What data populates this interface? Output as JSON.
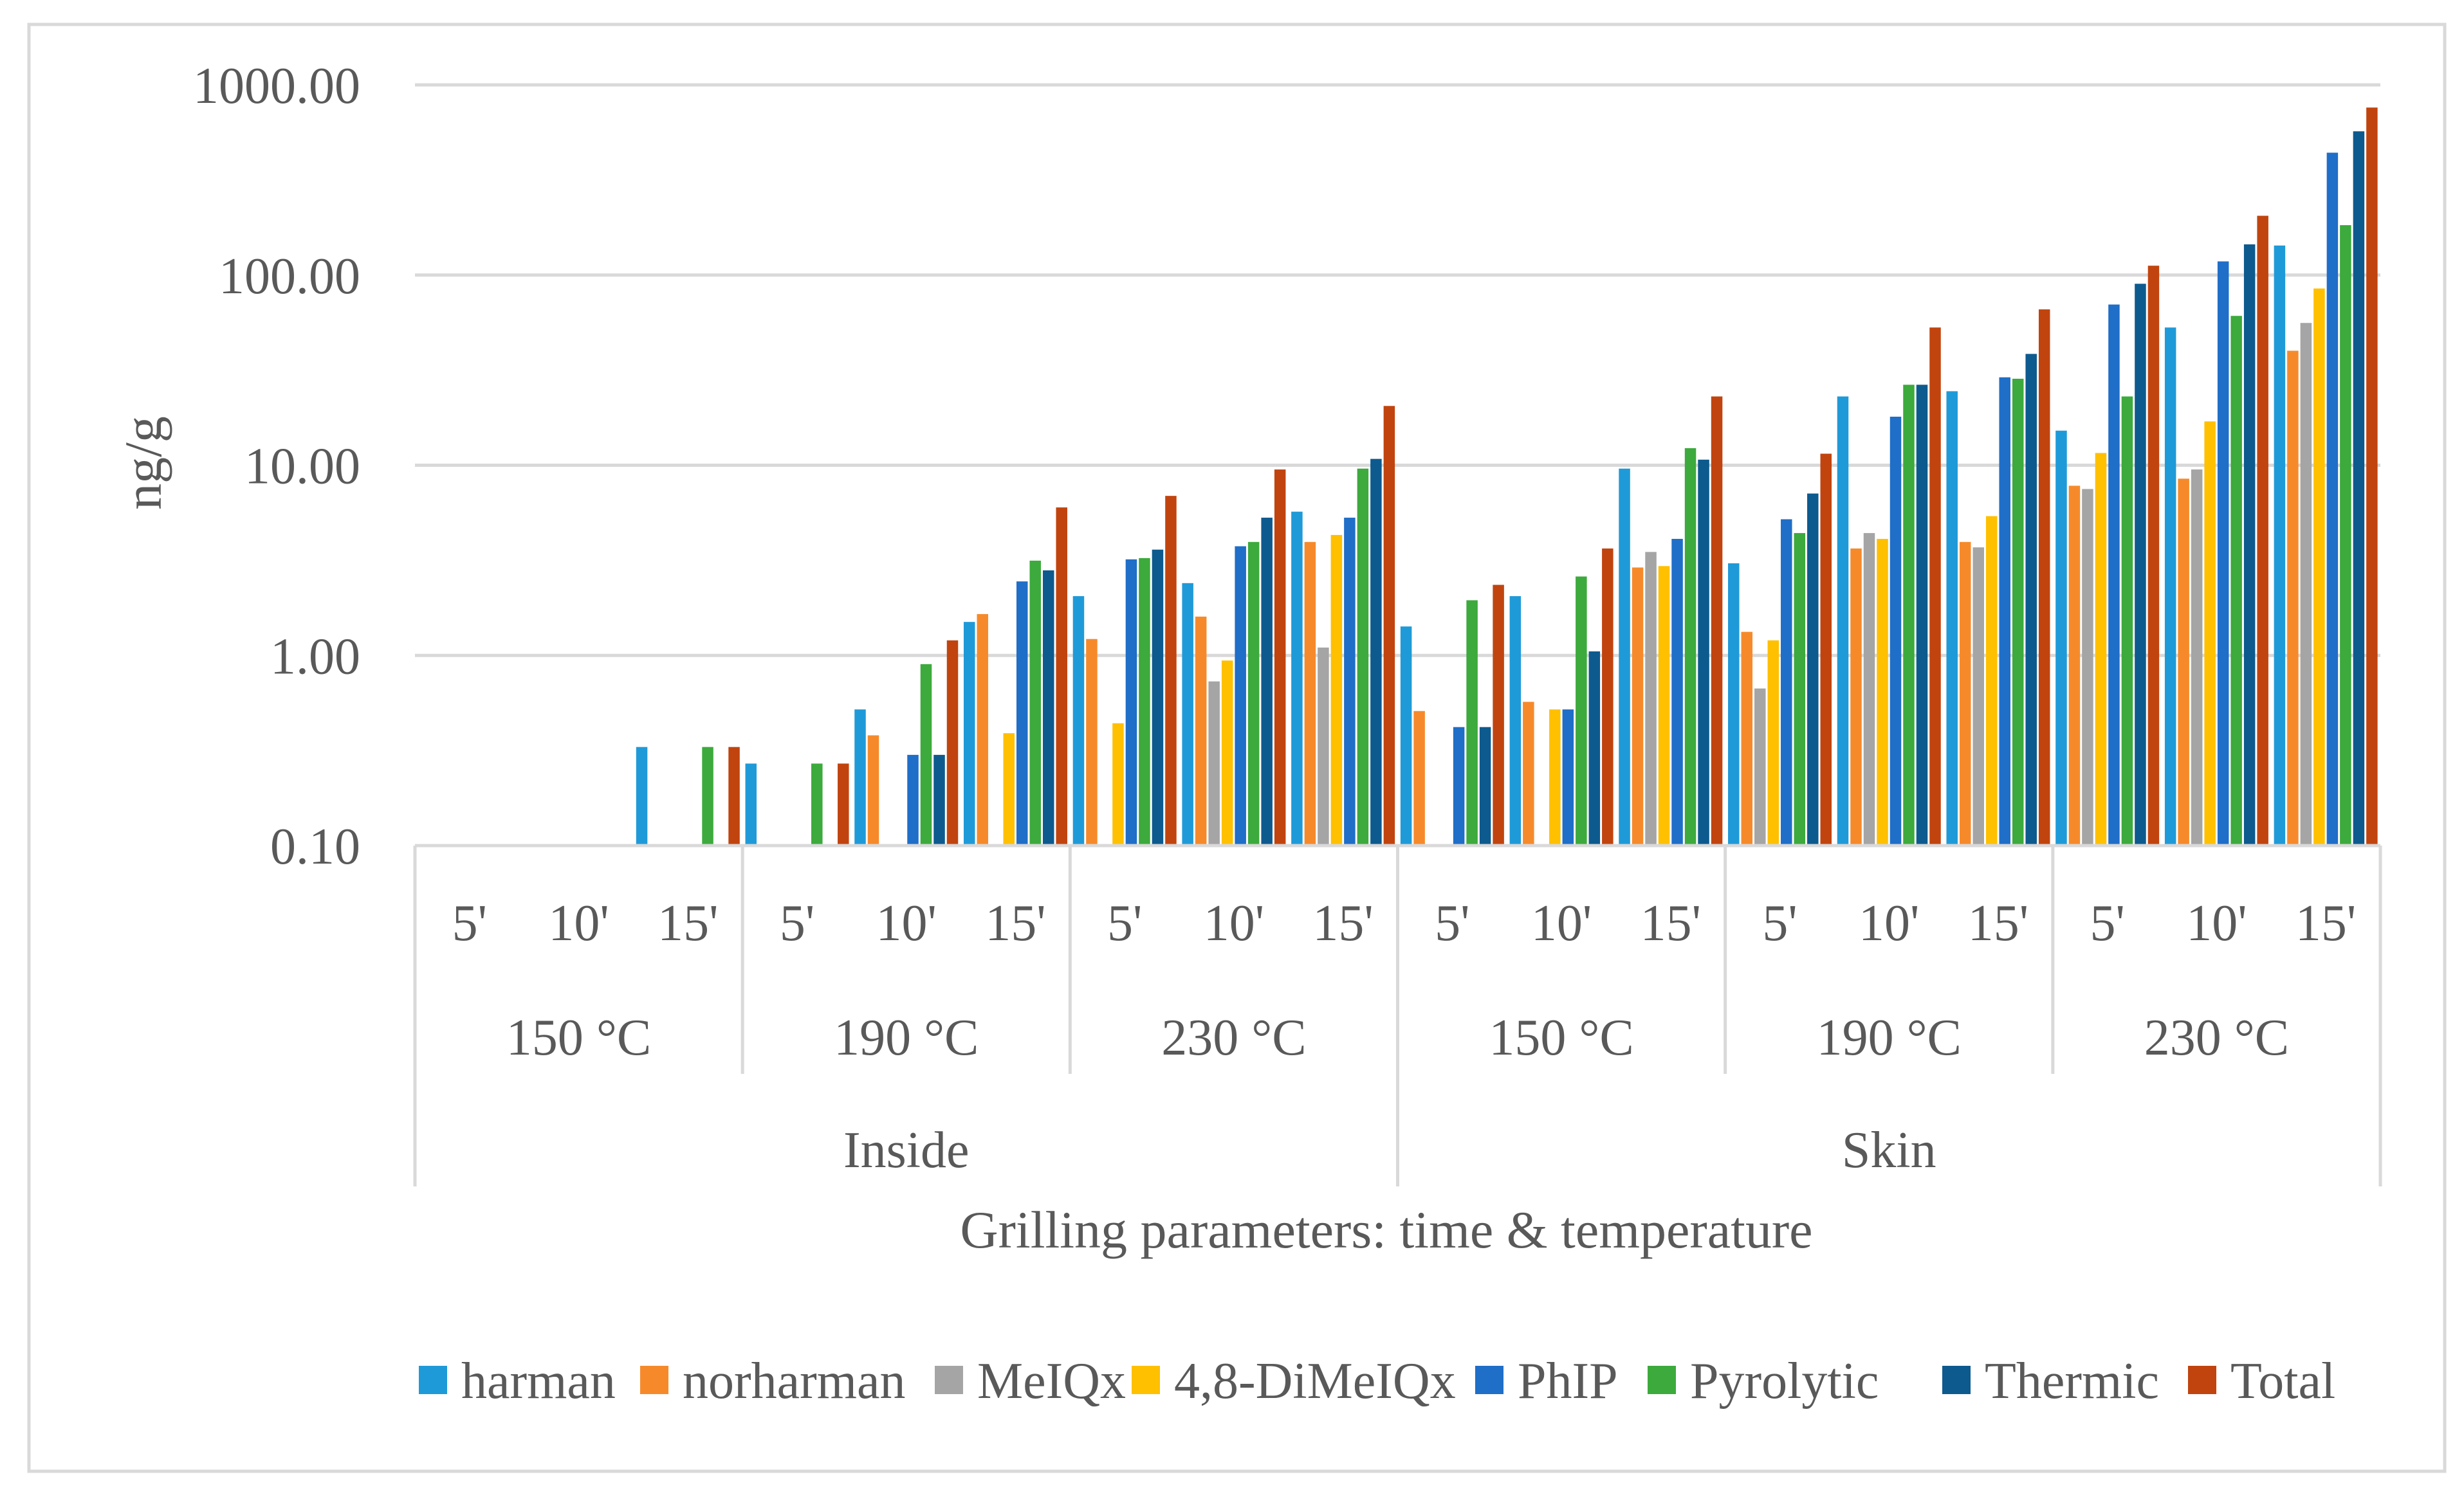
{
  "chart_data": {
    "type": "bar",
    "scale": "log",
    "title": "",
    "xlabel": "Grilling parameters: time & temperature",
    "ylabel": "ng/g",
    "ylim": [
      0.1,
      1000
    ],
    "yticks": [
      0.1,
      1,
      10,
      100,
      1000
    ],
    "ytick_labels": [
      "0.10",
      "1.00",
      "10.00",
      "100.00",
      "1000.00"
    ],
    "grid": true,
    "legend_position": "bottom",
    "group_levels": [
      {
        "name": "time",
        "labels": [
          "5'",
          "10'",
          "15'",
          "5'",
          "10'",
          "15'",
          "5'",
          "10'",
          "15'",
          "5'",
          "10'",
          "15'",
          "5'",
          "10'",
          "15'",
          "5'",
          "10'",
          "15'"
        ]
      },
      {
        "name": "temperature",
        "labels": [
          "150 °C",
          "190 °C",
          "230 °C",
          "150 °C",
          "190 °C",
          "230 °C"
        ]
      },
      {
        "name": "part",
        "labels": [
          "Inside",
          "Skin"
        ]
      }
    ],
    "series": [
      {
        "name": "harman",
        "color": "#1f9ad8",
        "values": [
          null,
          null,
          0.33,
          0.27,
          0.52,
          1.5,
          2.05,
          2.4,
          5.7,
          1.42,
          2.05,
          9.6,
          3.05,
          23,
          24.5,
          15.2,
          53,
          143
        ]
      },
      {
        "name": "norharman",
        "color": "#f68a2b",
        "values": [
          null,
          null,
          null,
          null,
          0.38,
          1.65,
          1.22,
          1.6,
          3.95,
          0.51,
          0.57,
          2.9,
          1.33,
          3.65,
          3.95,
          7.8,
          8.5,
          40
        ]
      },
      {
        "name": "MeIQx",
        "color": "#a5a5a5",
        "values": [
          null,
          null,
          null,
          null,
          null,
          null,
          null,
          0.73,
          1.1,
          null,
          null,
          3.5,
          0.67,
          4.4,
          3.7,
          7.5,
          9.5,
          56
        ]
      },
      {
        "name": "4,8-DiMeIQx",
        "color": "#ffc000",
        "values": [
          null,
          null,
          null,
          null,
          null,
          0.39,
          0.44,
          0.94,
          4.3,
          null,
          0.52,
          2.95,
          1.2,
          4.1,
          5.4,
          11.6,
          17,
          85
        ]
      },
      {
        "name": "PhIP",
        "color": "#1f6ec8",
        "values": [
          null,
          null,
          null,
          null,
          0.3,
          2.45,
          3.2,
          3.75,
          5.3,
          0.42,
          0.52,
          4.1,
          5.2,
          18,
          29,
          70,
          118,
          440
        ]
      },
      {
        "name": "Pyrolytic",
        "color": "#3caa3c",
        "values": [
          null,
          null,
          0.33,
          0.27,
          0.9,
          3.15,
          3.25,
          3.95,
          9.6,
          1.95,
          2.6,
          12.3,
          4.4,
          26.5,
          28.5,
          23,
          61,
          183
        ]
      },
      {
        "name": "Thermic",
        "color": "#0d5a8e",
        "values": [
          null,
          null,
          null,
          null,
          0.3,
          2.8,
          3.6,
          5.3,
          10.8,
          0.42,
          1.05,
          10.7,
          7.1,
          26.5,
          38.5,
          90,
          145,
          570
        ]
      },
      {
        "name": "Total",
        "color": "#c1440e",
        "values": [
          null,
          null,
          0.33,
          0.27,
          1.2,
          6.0,
          6.9,
          9.5,
          20.5,
          2.35,
          3.65,
          23,
          11.5,
          53,
          66,
          112,
          205,
          760
        ]
      }
    ]
  }
}
